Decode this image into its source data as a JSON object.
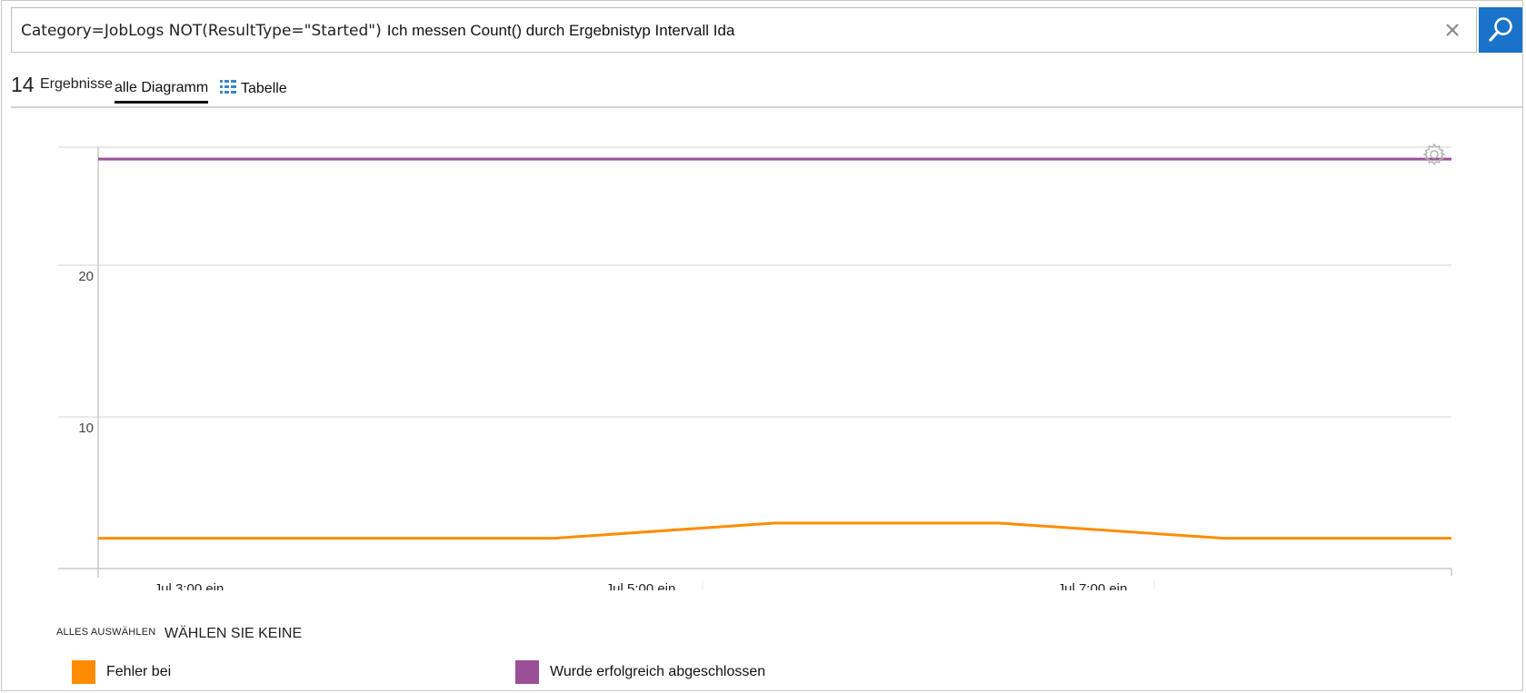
{
  "search": {
    "query_keyword_part": "Category=JobLogs NOT(ResultType=\"Started\")",
    "query_text_part": "Ich messen Count() durch Ergebnistyp Intervall Ida",
    "clear_icon": "close-icon",
    "search_icon": "search-icon",
    "button_color": "#1a73c8"
  },
  "results": {
    "count": "14",
    "label": "Ergebnisse"
  },
  "tabs": {
    "charts_label": "alle Diagramm",
    "table_label": "Tabelle",
    "table_icon": "table-icon"
  },
  "chart_data": {
    "type": "line",
    "title": "",
    "xlabel": "",
    "ylabel": "",
    "x_tick_labels": [
      "Jul 3:00 ein",
      "Jul 5:00 ein",
      "Jul 7:00 ein"
    ],
    "y_tick_labels": [
      "10",
      "20"
    ],
    "ylim": [
      0,
      28
    ],
    "grid": true,
    "series": [
      {
        "name": "Fehler bei",
        "color": "#ff8c00",
        "values": [
          2,
          2,
          2,
          3,
          3,
          2,
          2
        ]
      },
      {
        "name": "Wurde erfolgreich abgeschlossen",
        "color": "#9b4f96",
        "values": [
          27,
          27,
          27,
          27,
          27,
          27,
          27
        ]
      }
    ]
  },
  "chart_settings_icon": "gear-icon",
  "selection": {
    "select_all": "ALLES AUSWÄHLEN",
    "select_none": "WÄHLEN SIE KEINE"
  },
  "legend": {
    "items": [
      {
        "label": "Fehler bei",
        "color": "#ff8c00"
      },
      {
        "label": "Wurde erfolgreich abgeschlossen",
        "color": "#9b4f96"
      }
    ]
  }
}
